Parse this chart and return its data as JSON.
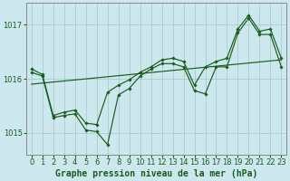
{
  "background_color": "#cce8ee",
  "grid_color": "#aacccc",
  "line_color": "#1a5c1a",
  "marker_color": "#1a5c1a",
  "xlabel": "Graphe pression niveau de la mer (hPa)",
  "xlabel_fontsize": 7,
  "tick_fontsize": 6,
  "xlim": [
    -0.5,
    23.5
  ],
  "ylim": [
    1014.6,
    1017.4
  ],
  "yticks": [
    1015,
    1016,
    1017
  ],
  "xticks": [
    0,
    1,
    2,
    3,
    4,
    5,
    6,
    7,
    8,
    9,
    10,
    11,
    12,
    13,
    14,
    15,
    16,
    17,
    18,
    19,
    20,
    21,
    22,
    23
  ],
  "series_trend": {
    "x": [
      0,
      23
    ],
    "y": [
      1015.9,
      1016.35
    ]
  },
  "series_volatile": {
    "x": [
      0,
      1,
      2,
      3,
      4,
      5,
      6,
      7,
      8,
      9,
      10,
      11,
      12,
      13,
      14,
      15,
      16,
      17,
      18,
      19,
      20,
      21,
      22,
      23
    ],
    "y": [
      1016.12,
      1016.05,
      1015.28,
      1015.32,
      1015.35,
      1015.05,
      1015.02,
      1014.78,
      1015.7,
      1015.82,
      1016.05,
      1016.18,
      1016.28,
      1016.28,
      1016.22,
      1015.78,
      1015.72,
      1016.22,
      1016.22,
      1016.85,
      1017.12,
      1016.82,
      1016.82,
      1016.22
    ]
  },
  "series_smooth": {
    "x": [
      0,
      1,
      2,
      3,
      4,
      5,
      6,
      7,
      8,
      9,
      10,
      11,
      12,
      13,
      14,
      15,
      16,
      17,
      18,
      19,
      20,
      21,
      22,
      23
    ],
    "y": [
      1016.18,
      1016.08,
      1015.32,
      1015.38,
      1015.42,
      1015.18,
      1015.15,
      1015.75,
      1015.88,
      1015.98,
      1016.12,
      1016.22,
      1016.35,
      1016.38,
      1016.32,
      1015.88,
      1016.22,
      1016.32,
      1016.38,
      1016.92,
      1017.18,
      1016.88,
      1016.92,
      1016.38
    ]
  }
}
